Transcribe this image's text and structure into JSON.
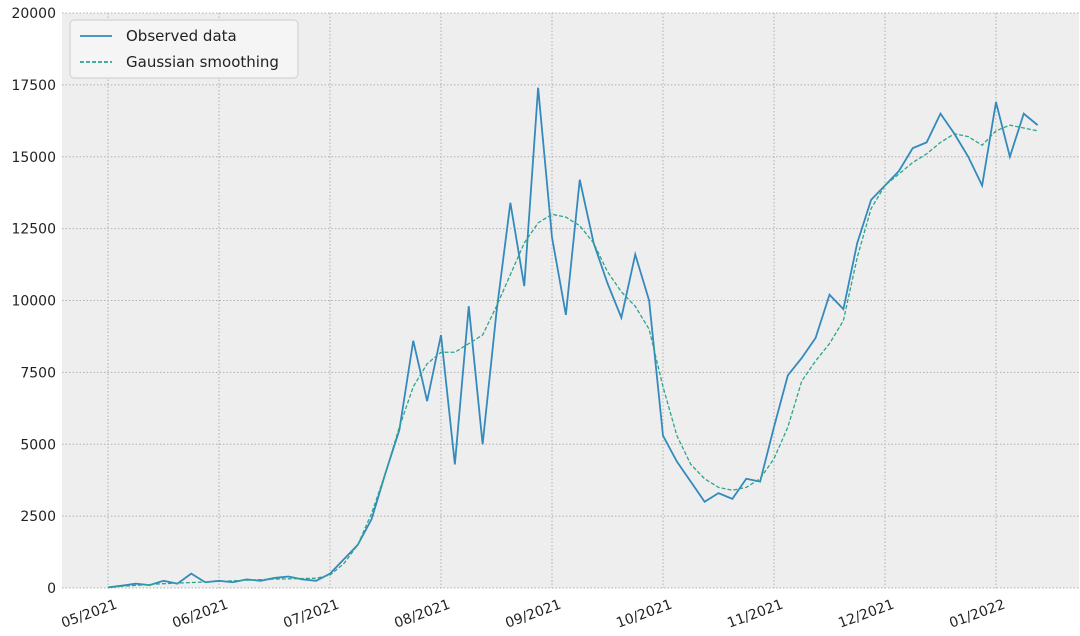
{
  "chart_data": {
    "type": "line",
    "categories": [
      "05/2021",
      null,
      null,
      null,
      null,
      null,
      null,
      null,
      "06/2021",
      null,
      null,
      null,
      null,
      null,
      null,
      null,
      "07/2021",
      null,
      null,
      null,
      null,
      null,
      null,
      null,
      "08/2021",
      null,
      null,
      null,
      null,
      null,
      null,
      null,
      "09/2021",
      null,
      null,
      null,
      null,
      null,
      null,
      null,
      "10/2021",
      null,
      null,
      null,
      null,
      null,
      null,
      null,
      "11/2021",
      null,
      null,
      null,
      null,
      null,
      null,
      null,
      "12/2021",
      null,
      null,
      null,
      null,
      null,
      null,
      null,
      "01/2022",
      null,
      null,
      null
    ],
    "series": [
      {
        "name": "Observed data",
        "color": "#348abd",
        "style": "solid",
        "values": [
          20,
          80,
          150,
          100,
          250,
          150,
          500,
          200,
          250,
          200,
          300,
          250,
          350,
          400,
          300,
          250,
          500,
          1000,
          1500,
          2400,
          4000,
          5500,
          8600,
          6500,
          8800,
          4300,
          9800,
          5000,
          9600,
          13400,
          10500,
          17400,
          12200,
          9500,
          14200,
          12000,
          10600,
          9400,
          11600,
          10000,
          5300,
          4400,
          3700,
          3000,
          3300,
          3100,
          3800,
          3700,
          5600,
          7400,
          8000,
          8700,
          10200,
          9700,
          12000,
          13500,
          14000,
          14500,
          15300,
          15500,
          16500,
          15800,
          15000,
          14000,
          16900,
          15000,
          16500,
          16100
        ]
      },
      {
        "name": "Gaussian smoothing",
        "color": "#2ca58d",
        "style": "dashed",
        "values": [
          30,
          60,
          90,
          120,
          150,
          170,
          190,
          210,
          230,
          250,
          270,
          290,
          310,
          320,
          330,
          340,
          450,
          850,
          1500,
          2600,
          4000,
          5600,
          7000,
          7800,
          8200,
          8200,
          8500,
          8800,
          9800,
          10900,
          12000,
          12700,
          13000,
          12900,
          12600,
          12000,
          11000,
          10300,
          9800,
          9000,
          7000,
          5300,
          4300,
          3800,
          3500,
          3400,
          3500,
          3800,
          4500,
          5600,
          7200,
          7900,
          8500,
          9300,
          11500,
          13200,
          14000,
          14400,
          14800,
          15100,
          15500,
          15800,
          15700,
          15400,
          15900,
          16100,
          16000,
          15900
        ]
      }
    ],
    "ylim": [
      0,
      20000
    ],
    "yticks": [
      0,
      2500,
      5000,
      7500,
      10000,
      12500,
      15000,
      17500,
      20000
    ],
    "grid": true,
    "legend": "upper left"
  }
}
